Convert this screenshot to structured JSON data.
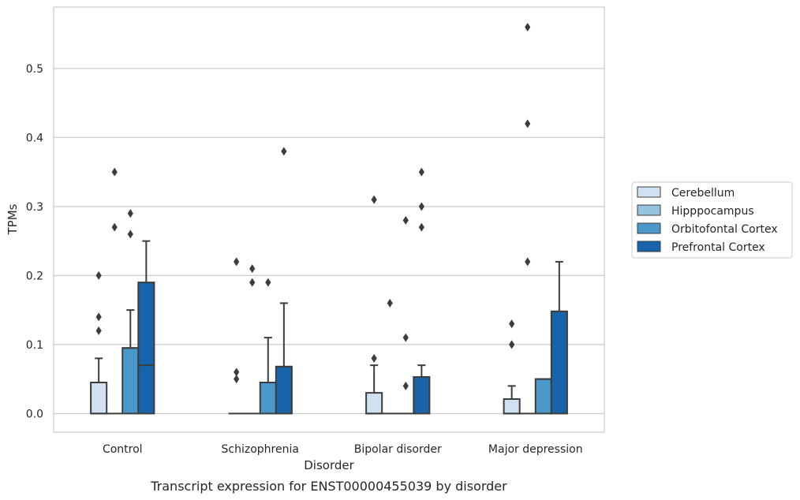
{
  "caption": "Transcript expression for ENST00000455039 by disorder",
  "chart_data": {
    "type": "box",
    "title": "",
    "xlabel": "Disorder",
    "ylabel": "TPMs",
    "ylim": [
      -0.027,
      0.589
    ],
    "yticks": [
      0.0,
      0.1,
      0.2,
      0.3,
      0.4,
      0.5
    ],
    "ytick_labels": [
      "0.0",
      "0.1",
      "0.2",
      "0.3",
      "0.4",
      "0.5"
    ],
    "grid": "horizontal",
    "legend_position": "right",
    "categories": [
      "Control",
      "Schizophrenia",
      "Bipolar disorder",
      "Major depression"
    ],
    "series": [
      {
        "name": "Cerebellum",
        "color": "#d0e1f2",
        "boxes": [
          {
            "q1": 0.0,
            "median": 0.0,
            "q3": 0.045,
            "whisker_low": 0.0,
            "whisker_high": 0.08,
            "outliers": [
              0.12,
              0.14,
              0.2
            ]
          },
          {
            "q1": 0.0,
            "median": 0.0,
            "q3": 0.0,
            "whisker_low": 0.0,
            "whisker_high": 0.0,
            "outliers": [
              0.05,
              0.06,
              0.22
            ]
          },
          {
            "q1": 0.0,
            "median": 0.0,
            "q3": 0.03,
            "whisker_low": 0.0,
            "whisker_high": 0.07,
            "outliers": [
              0.08,
              0.31
            ]
          },
          {
            "q1": 0.0,
            "median": 0.0,
            "q3": 0.021,
            "whisker_low": 0.0,
            "whisker_high": 0.04,
            "outliers": [
              0.1,
              0.13
            ]
          }
        ]
      },
      {
        "name": "Hipppocampus",
        "color": "#94c4df",
        "boxes": [
          {
            "q1": 0.0,
            "median": 0.0,
            "q3": 0.0,
            "whisker_low": 0.0,
            "whisker_high": 0.0,
            "outliers": [
              0.27,
              0.35
            ]
          },
          {
            "q1": 0.0,
            "median": 0.0,
            "q3": 0.0,
            "whisker_low": 0.0,
            "whisker_high": 0.0,
            "outliers": [
              0.19,
              0.21
            ]
          },
          {
            "q1": 0.0,
            "median": 0.0,
            "q3": 0.0,
            "whisker_low": 0.0,
            "whisker_high": 0.0,
            "outliers": [
              0.16
            ]
          },
          {
            "q1": 0.0,
            "median": 0.0,
            "q3": 0.0,
            "whisker_low": 0.0,
            "whisker_high": 0.0,
            "outliers": [
              0.22,
              0.42,
              0.56
            ]
          }
        ]
      },
      {
        "name": "Orbitofontal Cortex",
        "color": "#4a98c9",
        "boxes": [
          {
            "q1": 0.0,
            "median": 0.095,
            "q3": 0.095,
            "whisker_low": 0.0,
            "whisker_high": 0.15,
            "outliers": [
              0.26,
              0.29
            ]
          },
          {
            "q1": 0.0,
            "median": 0.045,
            "q3": 0.045,
            "whisker_low": 0.0,
            "whisker_high": 0.11,
            "outliers": [
              0.19
            ]
          },
          {
            "q1": 0.0,
            "median": 0.0,
            "q3": 0.0,
            "whisker_low": 0.0,
            "whisker_high": 0.0,
            "outliers": [
              0.04,
              0.11,
              0.28
            ]
          },
          {
            "q1": 0.0,
            "median": 0.05,
            "q3": 0.05,
            "whisker_low": 0.0,
            "whisker_high": 0.05,
            "outliers": []
          }
        ]
      },
      {
        "name": "Prefrontal Cortex",
        "color": "#1764ab",
        "boxes": [
          {
            "q1": 0.0,
            "median": 0.07,
            "q3": 0.19,
            "whisker_low": 0.0,
            "whisker_high": 0.25,
            "outliers": []
          },
          {
            "q1": 0.0,
            "median": 0.068,
            "q3": 0.068,
            "whisker_low": 0.0,
            "whisker_high": 0.16,
            "outliers": [
              0.38
            ]
          },
          {
            "q1": 0.0,
            "median": 0.053,
            "q3": 0.053,
            "whisker_low": 0.0,
            "whisker_high": 0.07,
            "outliers": [
              0.27,
              0.3,
              0.35
            ]
          },
          {
            "q1": 0.0,
            "median": 0.148,
            "q3": 0.148,
            "whisker_low": 0.0,
            "whisker_high": 0.22,
            "outliers": []
          }
        ]
      }
    ]
  }
}
